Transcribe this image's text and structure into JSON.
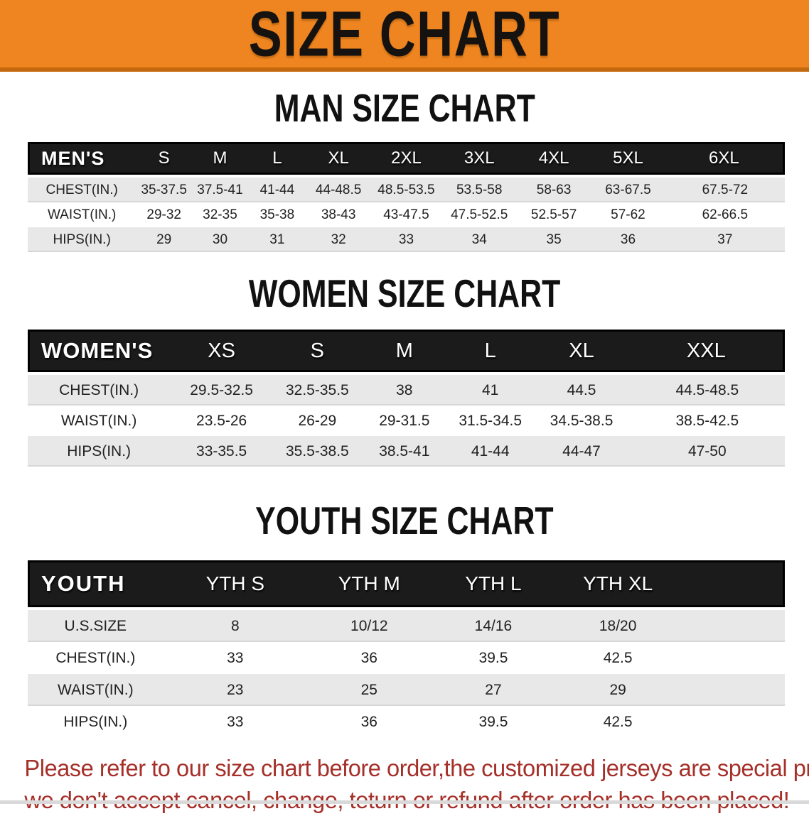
{
  "banner": {
    "title": "SIZE CHART",
    "bg_color": "#EE8520",
    "border_color": "#C4680D"
  },
  "sections": [
    {
      "id": "men",
      "heading": "MAN SIZE CHART",
      "table": {
        "header": [
          "MEN'S",
          "S",
          "M",
          "L",
          "XL",
          "2XL",
          "3XL",
          "4XL",
          "5XL",
          "6XL"
        ],
        "rows": [
          [
            "CHEST(IN.)",
            "35-37.5",
            "37.5-41",
            "41-44",
            "44-48.5",
            "48.5-53.5",
            "53.5-58",
            "58-63",
            "63-67.5",
            "67.5-72"
          ],
          [
            "WAIST(IN.)",
            "29-32",
            "32-35",
            "35-38",
            "38-43",
            "43-47.5",
            "47.5-52.5",
            "52.5-57",
            "57-62",
            "62-66.5"
          ],
          [
            "HIPS(IN.)",
            "29",
            "30",
            "31",
            "32",
            "33",
            "34",
            "35",
            "36",
            "37"
          ]
        ]
      }
    },
    {
      "id": "women",
      "heading": "WOMEN SIZE CHART",
      "table": {
        "header": [
          "WOMEN'S",
          "XS",
          "S",
          "M",
          "L",
          "XL",
          "XXL"
        ],
        "rows": [
          [
            "CHEST(IN.)",
            "29.5-32.5",
            "32.5-35.5",
            "38",
            "41",
            "44.5",
            "44.5-48.5"
          ],
          [
            "WAIST(IN.)",
            "23.5-26",
            "26-29",
            "29-31.5",
            "31.5-34.5",
            "34.5-38.5",
            "38.5-42.5"
          ],
          [
            "HIPS(IN.)",
            "33-35.5",
            "35.5-38.5",
            "38.5-41",
            "41-44",
            "44-47",
            "47-50"
          ]
        ]
      }
    },
    {
      "id": "youth",
      "heading": "YOUTH SIZE CHART",
      "table": {
        "header": [
          "YOUTH",
          "YTH S",
          "YTH M",
          "YTH L",
          "YTH XL",
          ""
        ],
        "rows": [
          [
            "U.S.SIZE",
            "8",
            "10/12",
            "14/16",
            "18/20",
            ""
          ],
          [
            "CHEST(IN.)",
            "33",
            "36",
            "39.5",
            "42.5",
            ""
          ],
          [
            "WAIST(IN.)",
            "23",
            "25",
            "27",
            "29",
            ""
          ],
          [
            "HIPS(IN.)",
            "33",
            "36",
            "39.5",
            "42.5",
            ""
          ]
        ]
      }
    }
  ],
  "disclaimer": {
    "line1": "Please refer to our size chart before order,the customized jerseys are special products,",
    "line2": "we don't accept cancel, change, teturn or refund after order has been placed!",
    "color": "#A5302A"
  },
  "colors": {
    "header_bar": "#1B1B1B",
    "row_shade": "#E8E8E8"
  }
}
